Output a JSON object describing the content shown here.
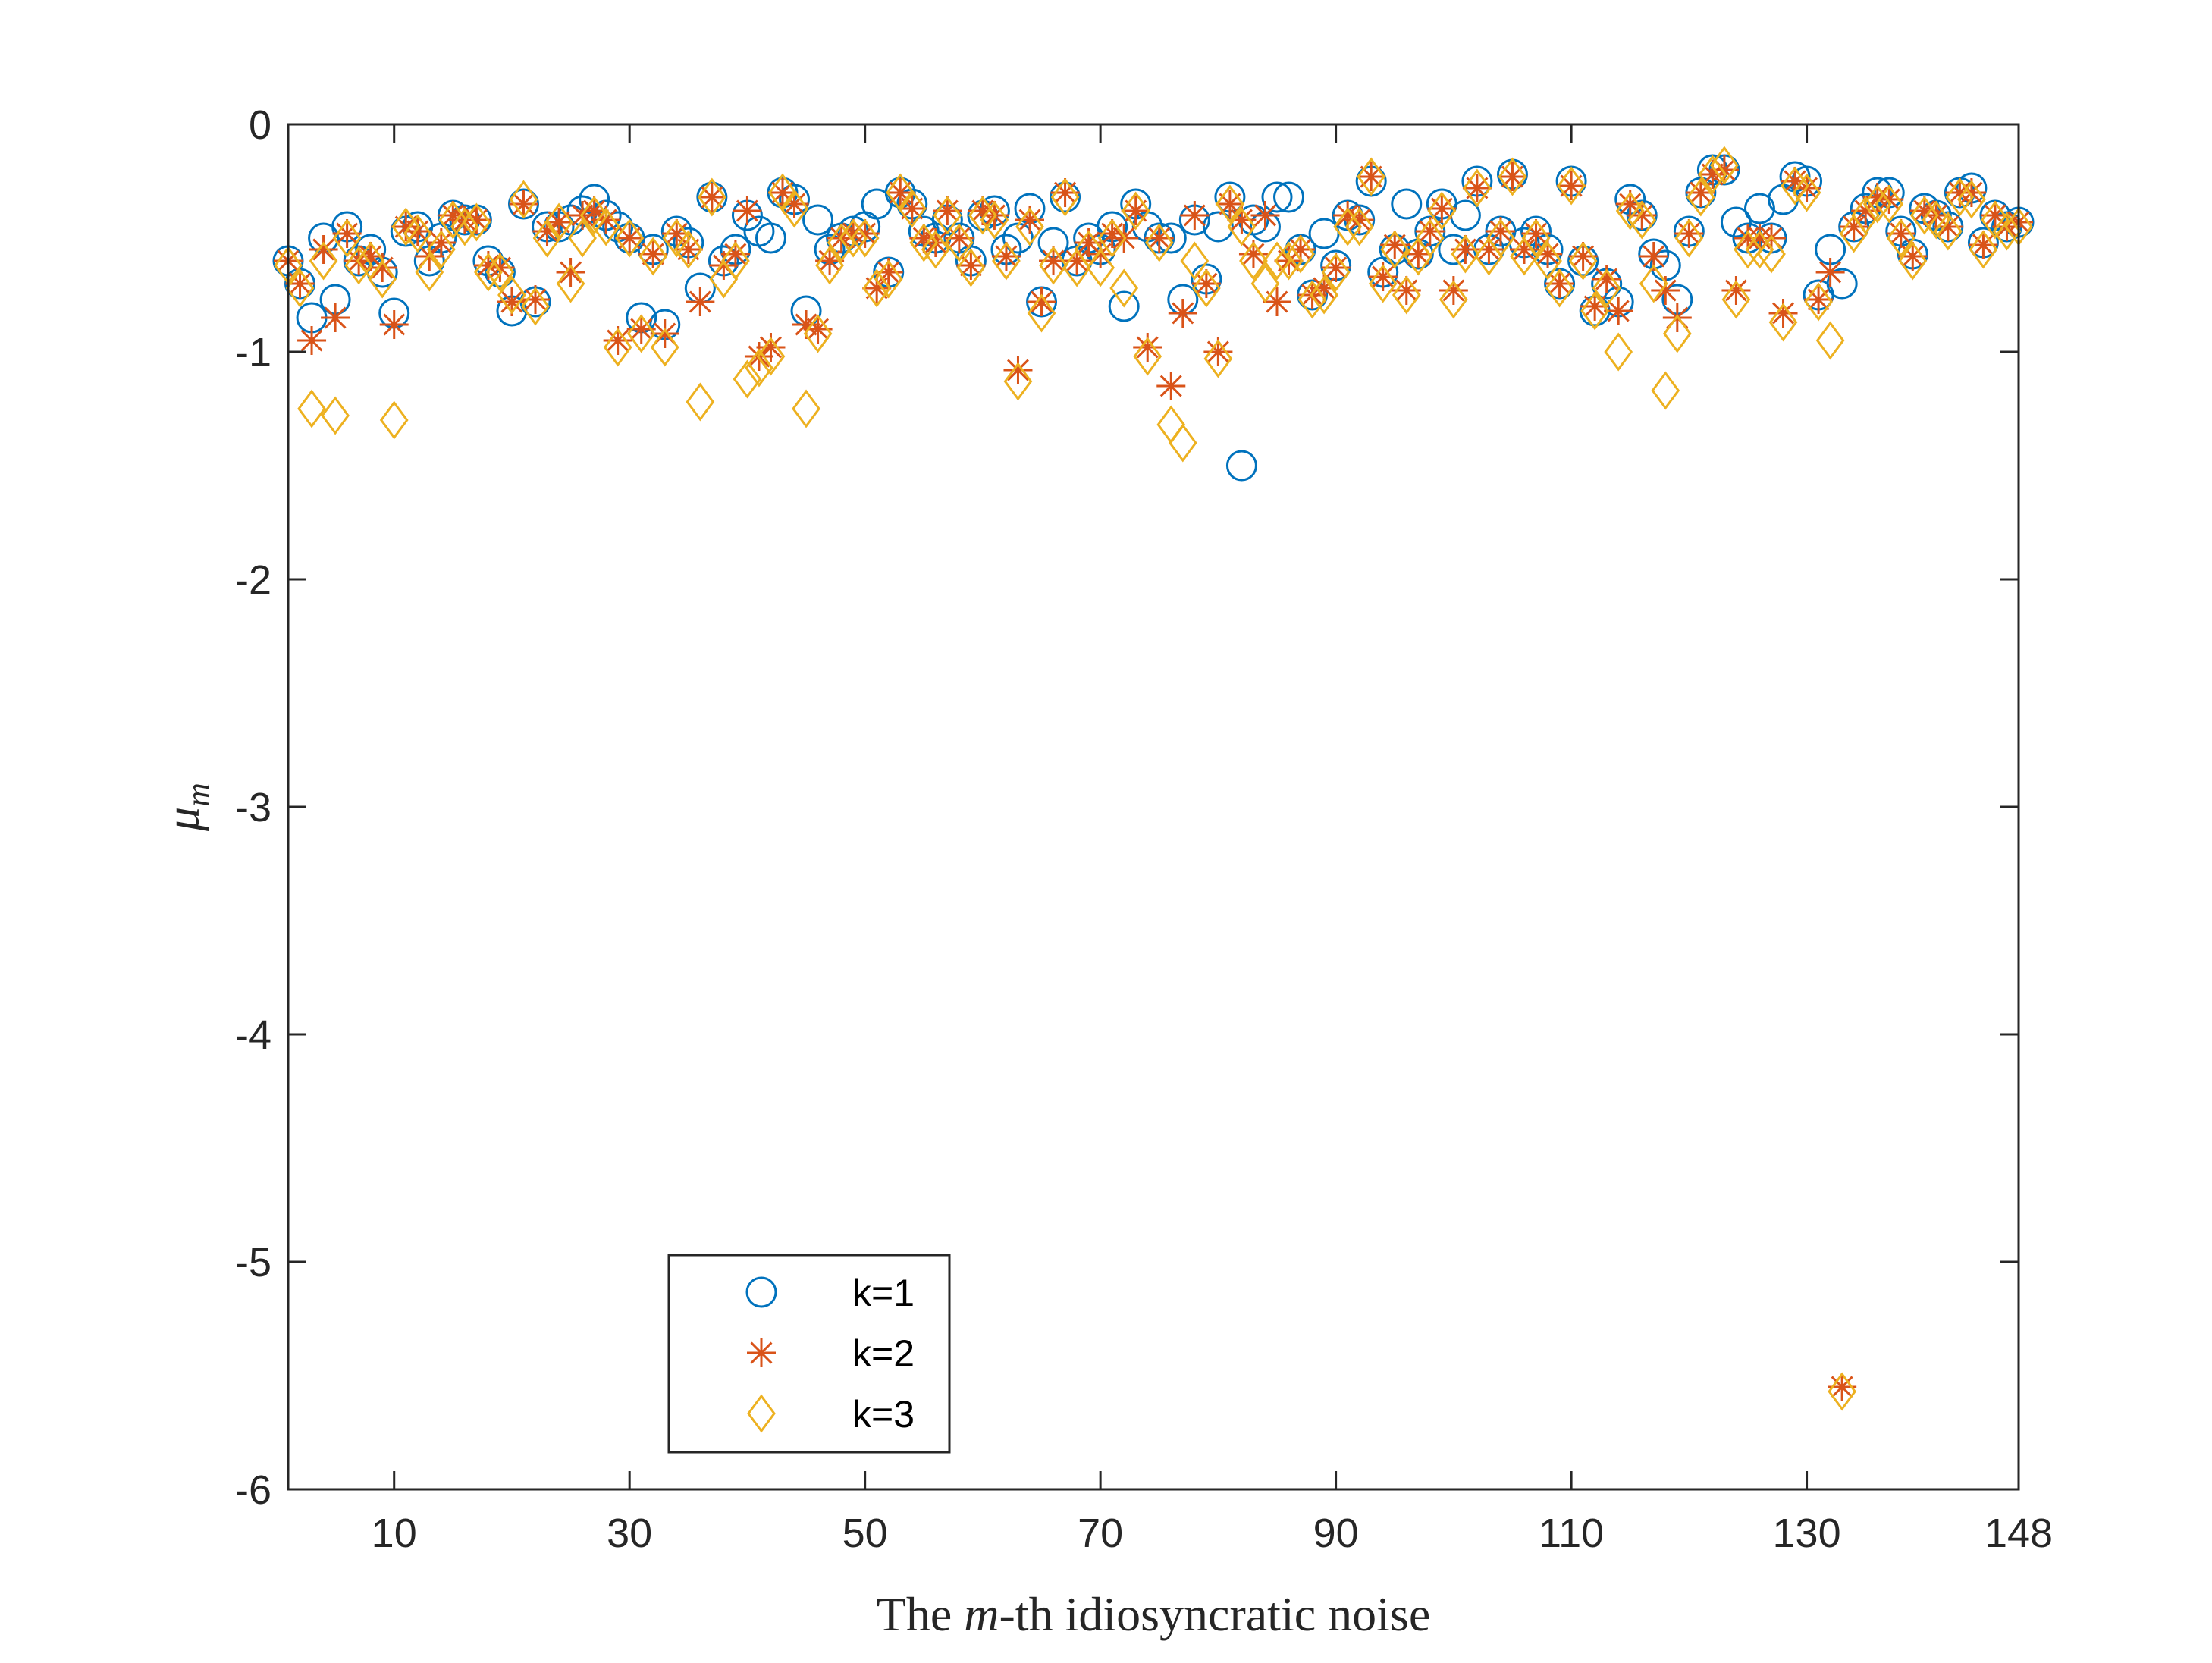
{
  "chart_data": {
    "type": "scatter",
    "title": "",
    "xlabel_pre": "The ",
    "xlabel_var": "m",
    "xlabel_post": "-th idiosyncratic noise",
    "ylabel_var": "μ",
    "ylabel_sub": "m",
    "xlim": [
      1,
      148
    ],
    "ylim": [
      -6,
      0
    ],
    "xticks": [
      10,
      30,
      50,
      70,
      90,
      110,
      130,
      148
    ],
    "yticks": [
      0,
      -1,
      -2,
      -3,
      -4,
      -5,
      -6
    ],
    "grid": false,
    "legend_position": "bottom-center",
    "series": [
      {
        "name": "k=1",
        "marker": "circle",
        "color": "#0072BD",
        "x": [
          1,
          2,
          3,
          4,
          5,
          6,
          7,
          8,
          9,
          10,
          11,
          12,
          13,
          14,
          15,
          16,
          17,
          18,
          19,
          20,
          21,
          22,
          23,
          24,
          25,
          26,
          27,
          28,
          29,
          30,
          31,
          32,
          33,
          34,
          35,
          36,
          37,
          38,
          39,
          40,
          41,
          42,
          43,
          44,
          45,
          46,
          47,
          48,
          49,
          50,
          51,
          52,
          53,
          54,
          55,
          56,
          57,
          58,
          59,
          60,
          61,
          62,
          63,
          64,
          65,
          66,
          67,
          68,
          69,
          70,
          71,
          72,
          73,
          74,
          75,
          76,
          77,
          78,
          79,
          80,
          81,
          82,
          83,
          84,
          85,
          86,
          87,
          88,
          89,
          90,
          91,
          92,
          93,
          94,
          95,
          96,
          97,
          98,
          99,
          100,
          101,
          102,
          103,
          104,
          105,
          106,
          107,
          108,
          109,
          110,
          111,
          112,
          113,
          114,
          115,
          116,
          117,
          118,
          119,
          120,
          121,
          122,
          123,
          124,
          125,
          126,
          127,
          128,
          129,
          130,
          131,
          132,
          133,
          134,
          135,
          136,
          137,
          138,
          139,
          140,
          141,
          142,
          143,
          144,
          145,
          146,
          147,
          148
        ],
        "y": [
          -0.6,
          -0.7,
          -0.85,
          -0.5,
          -0.77,
          -0.45,
          -0.6,
          -0.55,
          -0.65,
          -0.83,
          -0.47,
          -0.45,
          -0.6,
          -0.5,
          -0.4,
          -0.42,
          -0.42,
          -0.6,
          -0.65,
          -0.82,
          -0.35,
          -0.78,
          -0.45,
          -0.45,
          -0.42,
          -0.38,
          -0.33,
          -0.4,
          -0.45,
          -0.5,
          -0.85,
          -0.55,
          -0.88,
          -0.47,
          -0.52,
          -0.72,
          -0.32,
          -0.6,
          -0.55,
          -0.4,
          -0.47,
          -0.5,
          -0.3,
          -0.33,
          -0.82,
          -0.42,
          -0.55,
          -0.5,
          -0.47,
          -0.45,
          -0.35,
          -0.65,
          -0.3,
          -0.35,
          -0.47,
          -0.5,
          -0.42,
          -0.5,
          -0.6,
          -0.4,
          -0.38,
          -0.55,
          -0.5,
          -0.37,
          -0.78,
          -0.52,
          -0.32,
          -0.6,
          -0.5,
          -0.55,
          -0.45,
          -0.8,
          -0.35,
          -0.45,
          -0.5,
          -0.5,
          -0.77,
          -0.42,
          -0.68,
          -0.45,
          -0.32,
          -1.5,
          -0.42,
          -0.45,
          -0.32,
          -0.32,
          -0.55,
          -0.75,
          -0.48,
          -0.62,
          -0.4,
          -0.42,
          -0.25,
          -0.65,
          -0.55,
          -0.35,
          -0.57,
          -0.47,
          -0.35,
          -0.55,
          -0.4,
          -0.25,
          -0.55,
          -0.47,
          -0.22,
          -0.52,
          -0.47,
          -0.55,
          -0.7,
          -0.25,
          -0.6,
          -0.82,
          -0.7,
          -0.78,
          -0.33,
          -0.4,
          -0.57,
          -0.62,
          -0.77,
          -0.47,
          -0.3,
          -0.2,
          -0.2,
          -0.43,
          -0.5,
          -0.37,
          -0.5,
          -0.33,
          -0.23,
          -0.25,
          -0.75,
          -0.55,
          -0.7,
          -0.45,
          -0.37,
          -0.3,
          -0.3,
          -0.47,
          -0.57,
          -0.37,
          -0.4,
          -0.45,
          -0.3,
          -0.28,
          -0.52,
          -0.4,
          -0.45,
          -0.43
        ]
      },
      {
        "name": "k=2",
        "marker": "star",
        "color": "#D95319",
        "x": [
          1,
          2,
          3,
          4,
          5,
          6,
          7,
          8,
          9,
          10,
          11,
          12,
          13,
          14,
          15,
          16,
          17,
          18,
          19,
          20,
          21,
          22,
          23,
          24,
          25,
          26,
          27,
          28,
          29,
          30,
          31,
          32,
          33,
          34,
          35,
          36,
          37,
          38,
          39,
          40,
          41,
          42,
          43,
          44,
          45,
          46,
          47,
          48,
          49,
          50,
          51,
          52,
          53,
          54,
          55,
          56,
          57,
          58,
          59,
          60,
          61,
          62,
          63,
          64,
          65,
          66,
          67,
          68,
          69,
          70,
          71,
          72,
          73,
          74,
          75,
          76,
          77,
          78,
          79,
          80,
          81,
          82,
          83,
          84,
          85,
          86,
          87,
          88,
          89,
          90,
          91,
          92,
          93,
          94,
          95,
          96,
          97,
          98,
          99,
          100,
          101,
          102,
          103,
          104,
          105,
          106,
          107,
          108,
          109,
          110,
          111,
          112,
          113,
          114,
          115,
          116,
          117,
          118,
          119,
          120,
          121,
          122,
          123,
          124,
          125,
          126,
          127,
          128,
          129,
          130,
          131,
          132,
          133,
          134,
          135,
          136,
          137,
          138,
          139,
          140,
          141,
          142,
          143,
          144,
          145,
          146,
          147,
          148
        ],
        "y": [
          -0.6,
          -0.7,
          -0.95,
          -0.55,
          -0.85,
          -0.48,
          -0.6,
          -0.58,
          -0.63,
          -0.88,
          -0.45,
          -0.47,
          -0.58,
          -0.52,
          -0.4,
          -0.42,
          -0.42,
          -0.62,
          -0.63,
          -0.78,
          -0.35,
          -0.77,
          -0.47,
          -0.43,
          -0.65,
          -0.4,
          -0.38,
          -0.42,
          -0.95,
          -0.5,
          -0.9,
          -0.57,
          -0.92,
          -0.48,
          -0.55,
          -0.78,
          -0.32,
          -0.62,
          -0.57,
          -0.38,
          -1.02,
          -0.98,
          -0.3,
          -0.35,
          -0.88,
          -0.9,
          -0.6,
          -0.5,
          -0.48,
          -0.48,
          -0.72,
          -0.65,
          -0.3,
          -0.37,
          -0.5,
          -0.52,
          -0.38,
          -0.5,
          -0.62,
          -0.38,
          -0.4,
          -0.58,
          -1.08,
          -0.42,
          -0.78,
          -0.6,
          -0.3,
          -0.6,
          -0.52,
          -0.57,
          -0.48,
          -0.5,
          -0.38,
          -0.98,
          -0.5,
          -1.15,
          -0.83,
          -0.4,
          -0.7,
          -1.0,
          -0.35,
          -0.42,
          -0.57,
          -0.4,
          -0.78,
          -0.6,
          -0.55,
          -0.75,
          -0.72,
          -0.63,
          -0.4,
          -0.42,
          -0.23,
          -0.67,
          -0.53,
          -0.73,
          -0.57,
          -0.47,
          -0.37,
          -0.73,
          -0.55,
          -0.28,
          -0.55,
          -0.47,
          -0.23,
          -0.55,
          -0.48,
          -0.57,
          -0.7,
          -0.27,
          -0.58,
          -0.8,
          -0.68,
          -0.82,
          -0.35,
          -0.4,
          -0.58,
          -0.73,
          -0.85,
          -0.48,
          -0.3,
          -0.22,
          -0.2,
          -0.73,
          -0.5,
          -0.5,
          -0.5,
          -0.83,
          -0.25,
          -0.28,
          -0.77,
          -0.65,
          -5.55,
          -0.45,
          -0.38,
          -0.32,
          -0.33,
          -0.48,
          -0.58,
          -0.38,
          -0.4,
          -0.45,
          -0.3,
          -0.3,
          -0.53,
          -0.4,
          -0.45,
          -0.43
        ]
      },
      {
        "name": "k=3",
        "marker": "diamond",
        "color": "#EDB120",
        "x": [
          1,
          2,
          3,
          4,
          5,
          6,
          7,
          8,
          9,
          10,
          11,
          12,
          13,
          14,
          15,
          16,
          17,
          18,
          19,
          20,
          21,
          22,
          23,
          24,
          25,
          26,
          27,
          28,
          29,
          30,
          31,
          32,
          33,
          34,
          35,
          36,
          37,
          38,
          39,
          40,
          41,
          42,
          43,
          44,
          45,
          46,
          47,
          48,
          49,
          50,
          51,
          52,
          53,
          54,
          55,
          56,
          57,
          58,
          59,
          60,
          61,
          62,
          63,
          64,
          65,
          66,
          67,
          68,
          69,
          70,
          71,
          72,
          73,
          74,
          75,
          76,
          77,
          78,
          79,
          80,
          81,
          82,
          83,
          84,
          85,
          86,
          87,
          88,
          89,
          90,
          91,
          92,
          93,
          94,
          95,
          96,
          97,
          98,
          99,
          100,
          101,
          102,
          103,
          104,
          105,
          106,
          107,
          108,
          109,
          110,
          111,
          112,
          113,
          114,
          115,
          116,
          117,
          118,
          119,
          120,
          121,
          122,
          123,
          124,
          125,
          126,
          127,
          128,
          129,
          130,
          131,
          132,
          133,
          134,
          135,
          136,
          137,
          138,
          139,
          140,
          141,
          142,
          143,
          144,
          145,
          146,
          147,
          148
        ],
        "y": [
          -0.62,
          -0.72,
          -1.25,
          -0.6,
          -1.28,
          -0.5,
          -0.62,
          -0.6,
          -0.68,
          -1.3,
          -0.45,
          -0.48,
          -0.65,
          -0.55,
          -0.42,
          -0.45,
          -0.43,
          -0.65,
          -0.65,
          -0.75,
          -0.33,
          -0.8,
          -0.5,
          -0.43,
          -0.7,
          -0.5,
          -0.4,
          -0.45,
          -0.98,
          -0.5,
          -0.92,
          -0.58,
          -0.98,
          -0.5,
          -0.55,
          -1.22,
          -0.32,
          -0.68,
          -0.6,
          -1.12,
          -1.07,
          -1.02,
          -0.3,
          -0.37,
          -1.25,
          -0.92,
          -0.62,
          -0.52,
          -0.5,
          -0.5,
          -0.72,
          -0.68,
          -0.3,
          -0.37,
          -0.52,
          -0.55,
          -0.4,
          -0.52,
          -0.63,
          -0.4,
          -0.42,
          -0.6,
          -1.13,
          -0.45,
          -0.83,
          -0.62,
          -0.32,
          -0.63,
          -0.55,
          -0.63,
          -0.5,
          -0.72,
          -0.38,
          -1.02,
          -0.52,
          -1.32,
          -1.4,
          -0.6,
          -0.72,
          -1.03,
          -0.35,
          -0.45,
          -0.6,
          -0.7,
          -0.6,
          -0.6,
          -0.57,
          -0.77,
          -0.75,
          -0.65,
          -0.45,
          -0.45,
          -0.23,
          -0.7,
          -0.55,
          -0.75,
          -0.58,
          -0.5,
          -0.38,
          -0.77,
          -0.57,
          -0.28,
          -0.58,
          -0.5,
          -0.23,
          -0.58,
          -0.5,
          -0.6,
          -0.72,
          -0.27,
          -0.6,
          -0.82,
          -0.72,
          -1.0,
          -0.38,
          -0.42,
          -0.7,
          -1.17,
          -0.92,
          -0.5,
          -0.32,
          -0.22,
          -0.18,
          -0.77,
          -0.55,
          -0.55,
          -0.57,
          -0.87,
          -0.27,
          -0.3,
          -0.78,
          -0.95,
          -5.57,
          -0.48,
          -0.4,
          -0.35,
          -0.35,
          -0.5,
          -0.6,
          -0.4,
          -0.42,
          -0.47,
          -0.32,
          -0.33,
          -0.55,
          -0.42,
          -0.47,
          -0.45
        ]
      }
    ]
  }
}
